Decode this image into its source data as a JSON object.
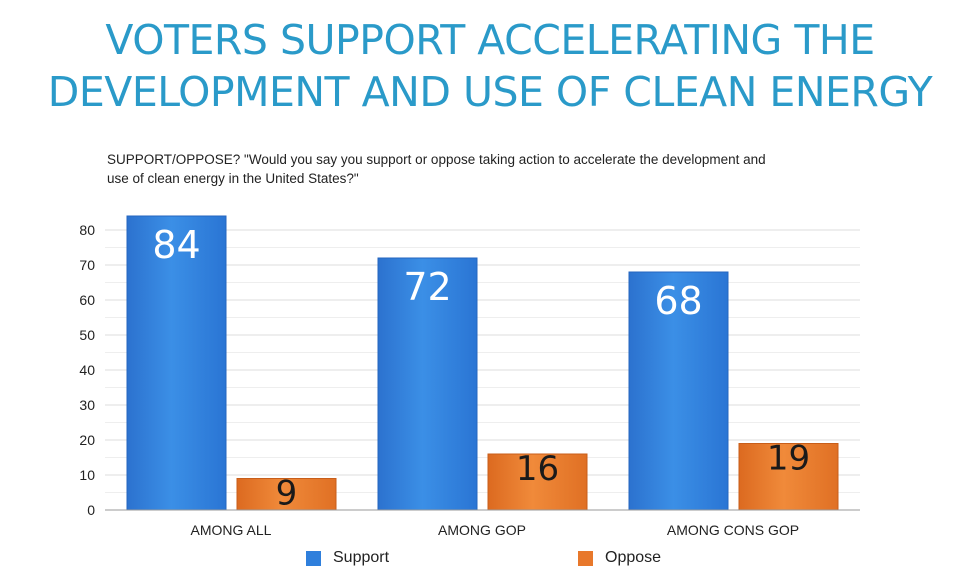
{
  "title_lines": [
    "VOTERS SUPPORT ACCELERATING THE",
    "DEVELOPMENT AND USE OF CLEAN ENERGY"
  ],
  "subtitle_lines": [
    "SUPPORT/OPPOSE? \"Would you say you support or oppose taking action to accelerate the development and",
    "use of clean energy in the United States?\""
  ],
  "colors": {
    "title": "#2a9ac9",
    "support": "#2f7fdc",
    "oppose": "#e8782b"
  },
  "chart_data": {
    "type": "bar",
    "title": "VOTERS SUPPORT ACCELERATING THE DEVELOPMENT AND USE OF CLEAN ENERGY",
    "subtitle": "SUPPORT/OPPOSE? \"Would you say you support or oppose taking action to accelerate the development and use of clean energy in the United States?\"",
    "categories": [
      "AMONG ALL",
      "AMONG GOP",
      "AMONG CONS GOP"
    ],
    "series": [
      {
        "name": "Support",
        "values": [
          84,
          72,
          68
        ]
      },
      {
        "name": "Oppose",
        "values": [
          9,
          16,
          19
        ]
      }
    ],
    "ylim": [
      0,
      85
    ],
    "yticks": [
      0,
      10,
      20,
      30,
      40,
      50,
      60,
      70,
      80
    ],
    "xlabel": "",
    "ylabel": "",
    "grid": true,
    "legend_position": "bottom",
    "data_labels": true
  }
}
